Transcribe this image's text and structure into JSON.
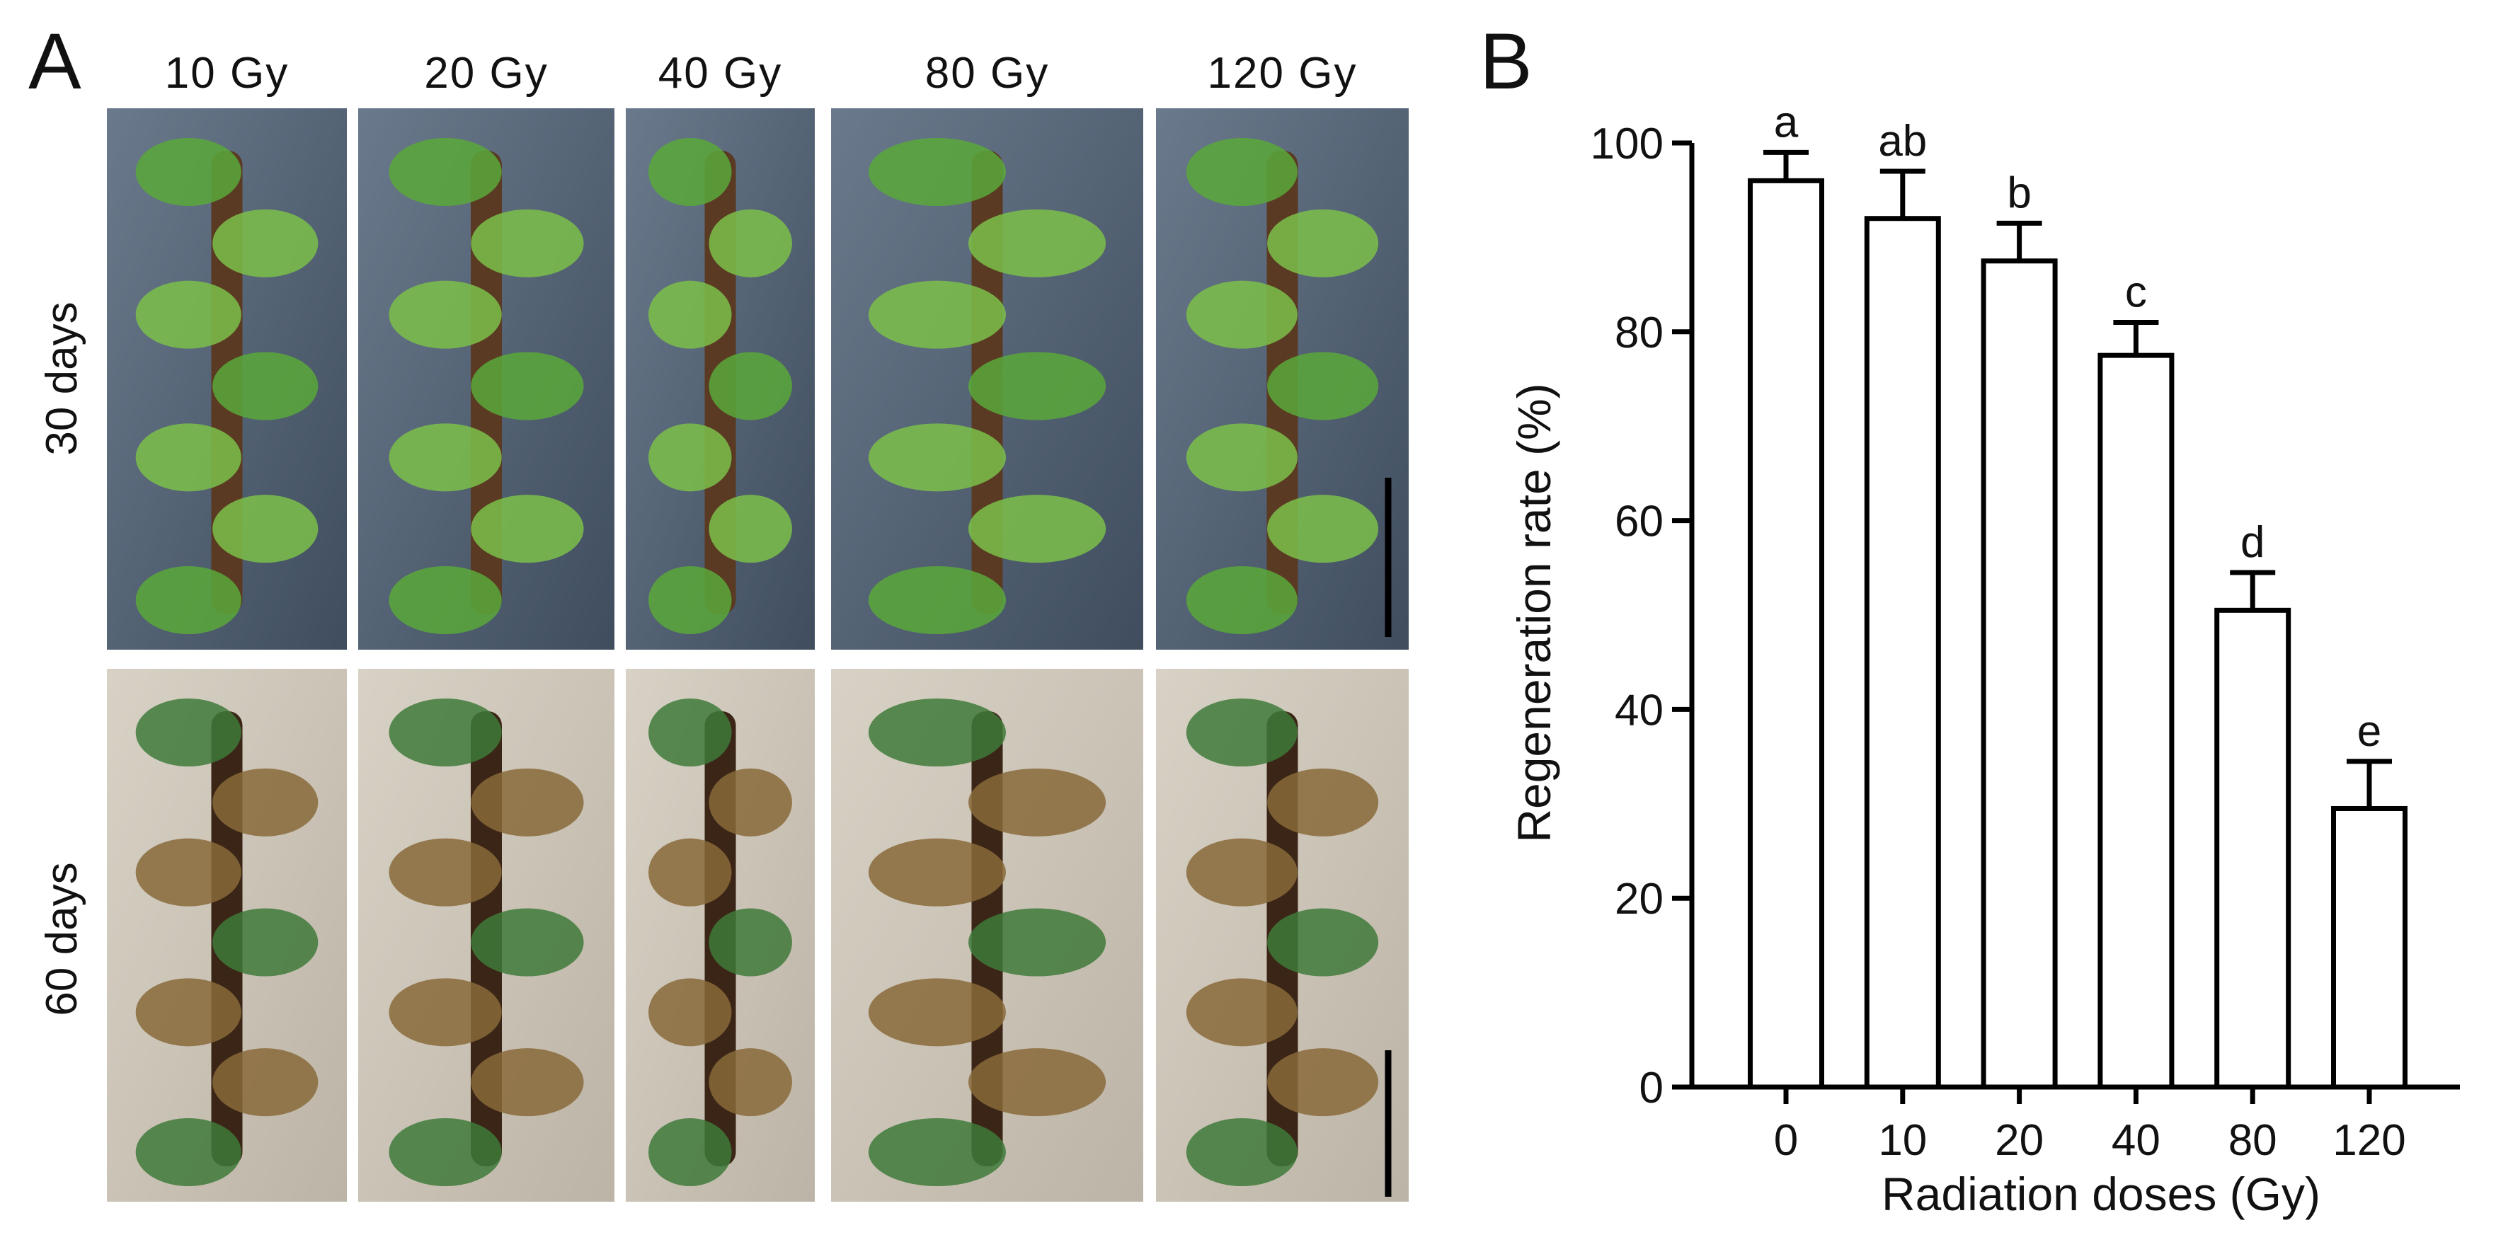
{
  "panel_labels": [
    "A",
    "B"
  ],
  "photo_grid": {
    "columns": [
      "10 Gy",
      "20 Gy",
      "40 Gy",
      "80 Gy",
      "120 Gy"
    ],
    "rows": [
      "30 days",
      "60 days"
    ]
  },
  "chart_data": {
    "type": "bar",
    "xlabel": "Radiation doses (Gy)",
    "ylabel": "Regeneration rate (%)",
    "categories": [
      "0",
      "10",
      "20",
      "40",
      "80",
      "120"
    ],
    "values": [
      96,
      92,
      87.5,
      77.5,
      50.5,
      29.5
    ],
    "errors": [
      3,
      5,
      4,
      3.5,
      4,
      5
    ],
    "annotations": [
      "a",
      "ab",
      "b",
      "c",
      "d",
      "e"
    ],
    "color": "#ffffff",
    "ylim": [
      0,
      100
    ],
    "yticks": [
      0,
      20,
      40,
      60,
      80,
      100
    ],
    "grid": false
  }
}
